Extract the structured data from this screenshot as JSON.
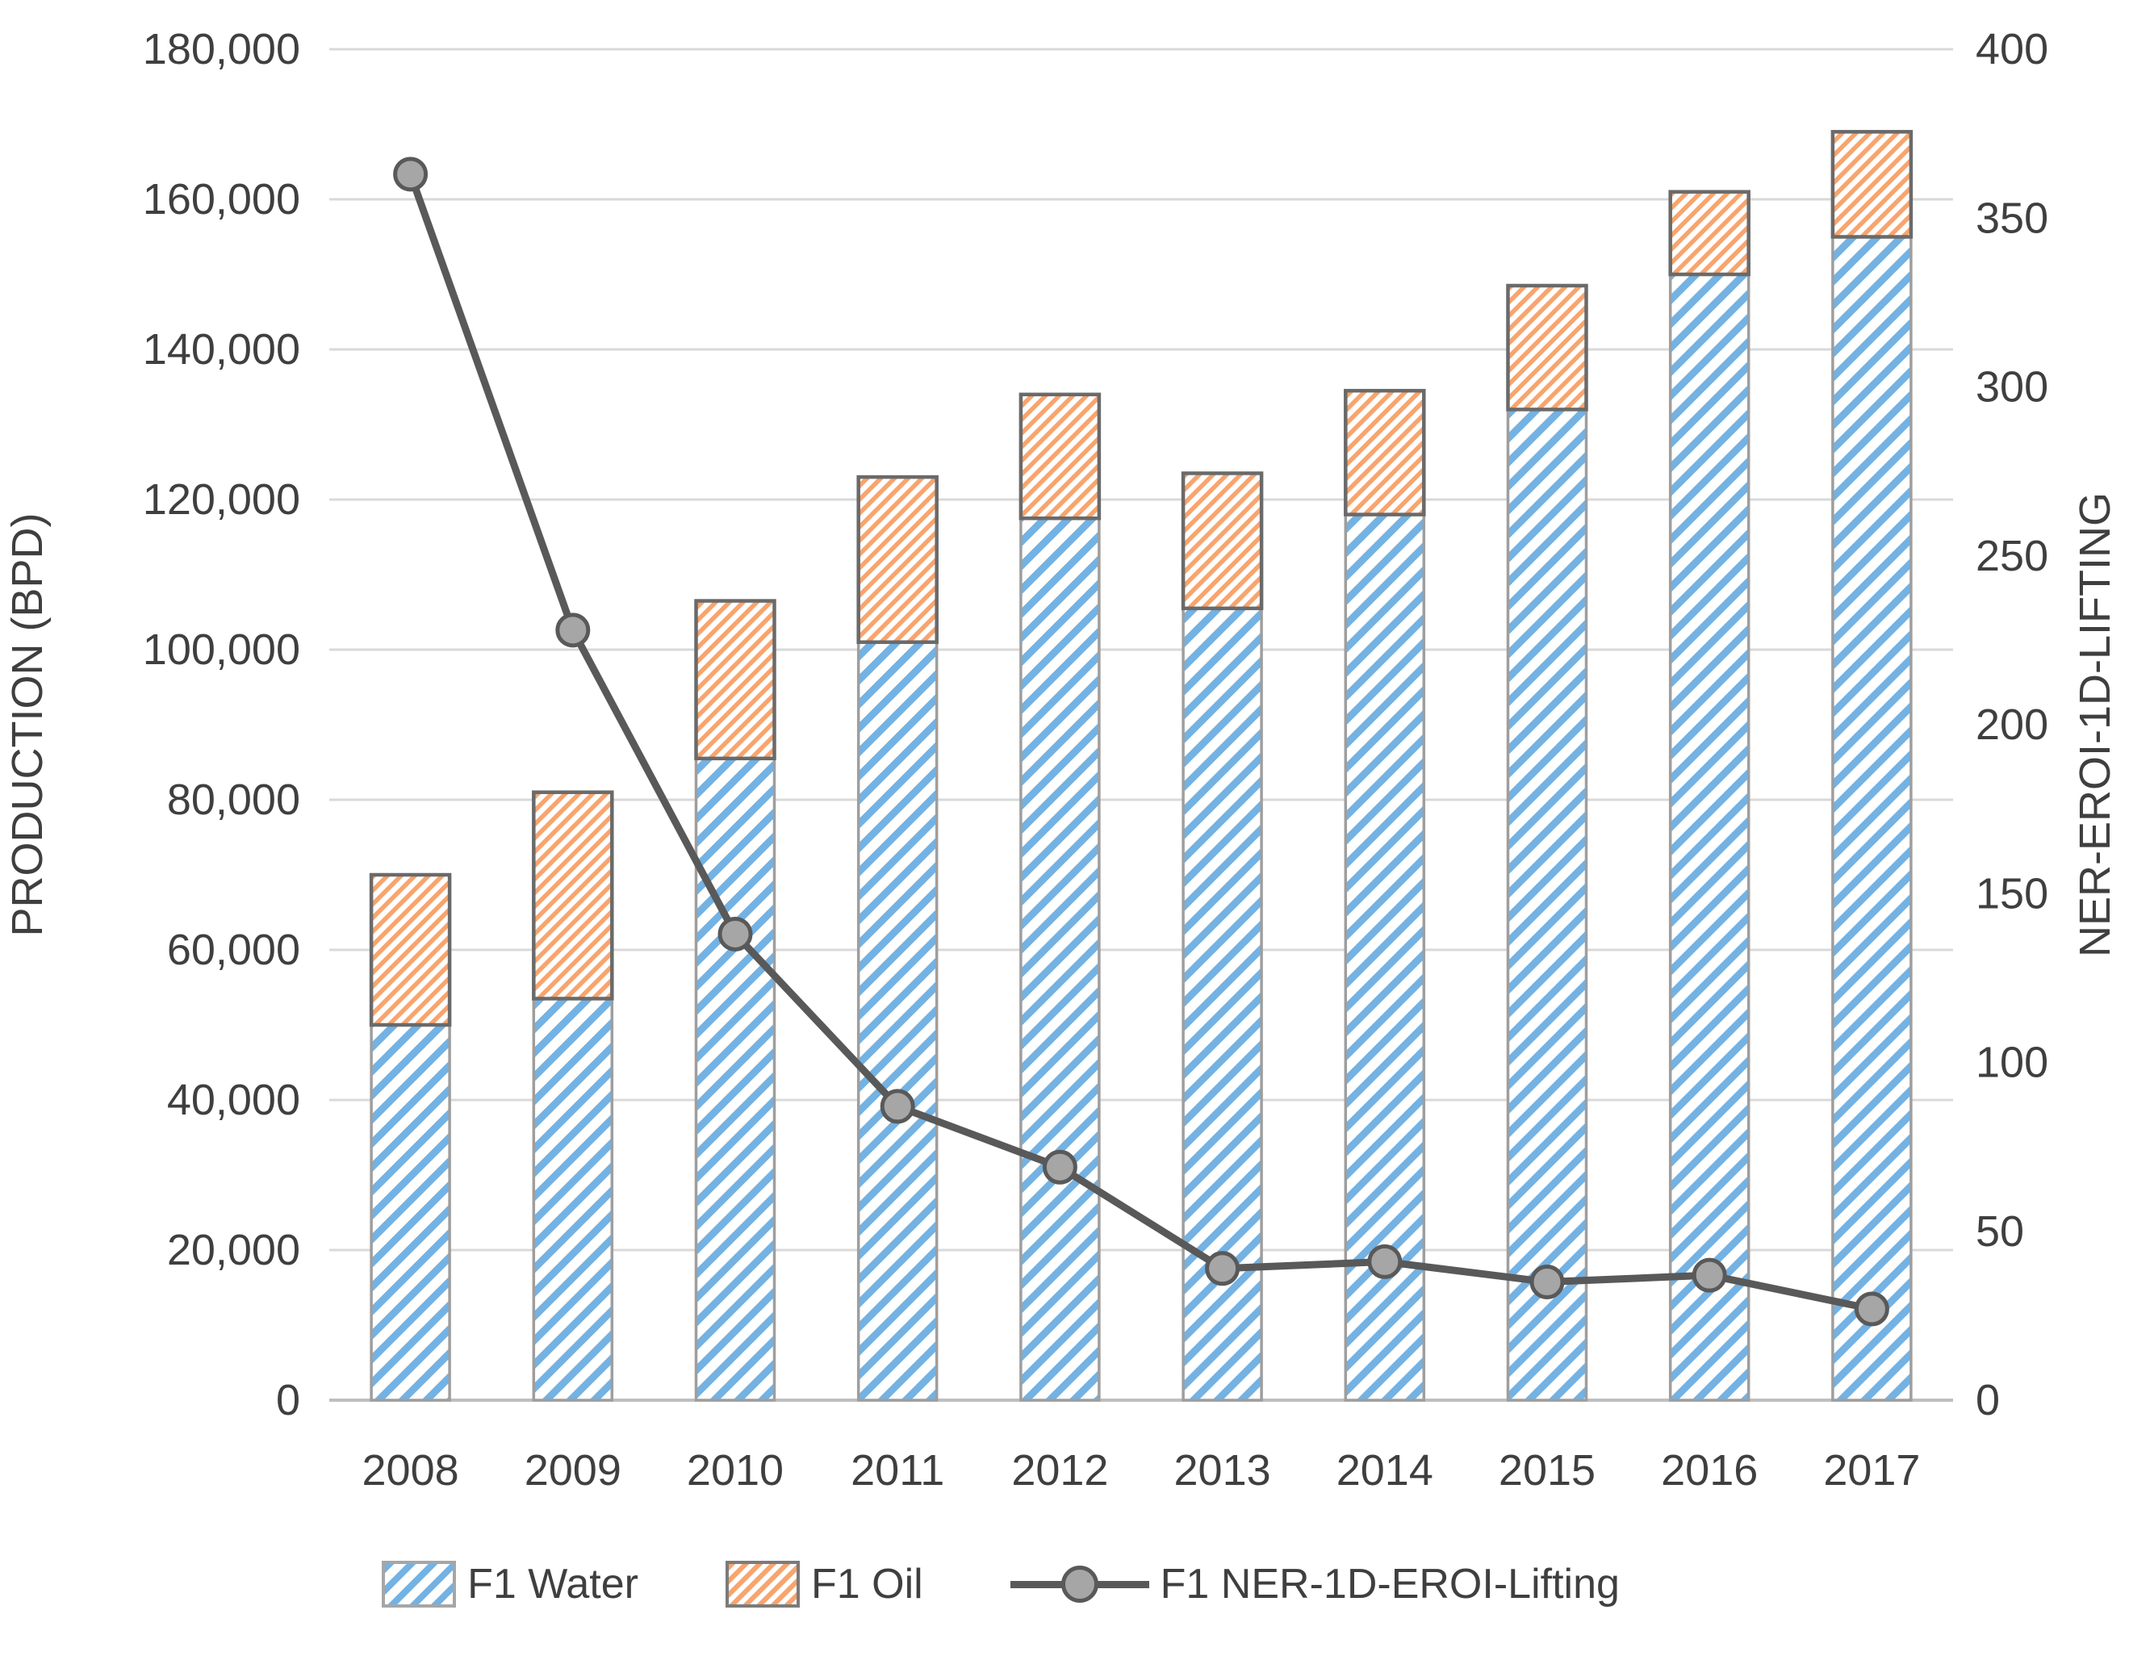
{
  "chart_data": {
    "type": "combo-stacked-bar-line",
    "title": "",
    "categories": [
      "2008",
      "2009",
      "2010",
      "2011",
      "2012",
      "2013",
      "2014",
      "2015",
      "2016",
      "2017"
    ],
    "series": [
      {
        "name": "F1 Water",
        "type": "bar",
        "stack": "production",
        "axis": "left",
        "values": [
          50000,
          53500,
          85500,
          101000,
          117500,
          105500,
          118000,
          132000,
          150000,
          155000
        ]
      },
      {
        "name": "F1 Oil",
        "type": "bar",
        "stack": "production",
        "axis": "left",
        "values": [
          20000,
          27500,
          21000,
          22000,
          16500,
          18000,
          16500,
          16500,
          11000,
          14000
        ]
      },
      {
        "name": "F1 NER-1D-EROI-Lifting",
        "type": "line",
        "axis": "right",
        "values": [
          363,
          228,
          138,
          87,
          69,
          39,
          41,
          35,
          37,
          27
        ]
      }
    ],
    "stack_totals": [
      70000,
      81000,
      106500,
      123000,
      134000,
      123500,
      134500,
      148500,
      161000,
      169000
    ],
    "y_left": {
      "label": "PRODUCTION (BPD)",
      "min": 0,
      "max": 180000,
      "step": 20000,
      "ticks": [
        "0",
        "20,000",
        "40,000",
        "60,000",
        "80,000",
        "100,000",
        "120,000",
        "140,000",
        "160,000",
        "180,000"
      ]
    },
    "y_right": {
      "label": "NER-EROI-1D-LIFTING",
      "min": 0,
      "max": 400,
      "step": 50,
      "ticks": [
        "0",
        "50",
        "100",
        "150",
        "200",
        "250",
        "300",
        "350",
        "400"
      ]
    },
    "legend_position": "bottom",
    "grid": "horizontal",
    "colors": {
      "water_stripe": "#73b2e3",
      "oil_stripe": "#f8a46d",
      "bar_border_water": "#9e9e9e",
      "bar_border_oil": "#6a6a6a",
      "line": "#595959",
      "marker_fill": "#a6a6a6",
      "marker_border": "#595959",
      "gridline": "#d9d9d9",
      "axis_line": "#bfbfbf",
      "text": "#3f3f3f"
    }
  }
}
